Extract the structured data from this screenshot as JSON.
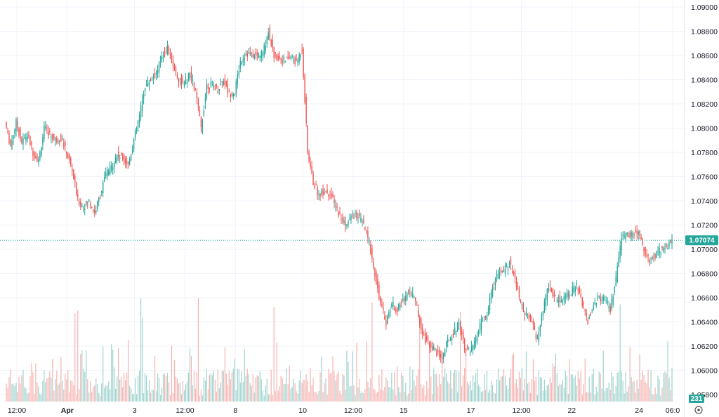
{
  "chart_data": {
    "type": "candlestick",
    "y_axis": {
      "ylim": [
        1.0585,
        1.0905
      ],
      "ticks": [
        "1.09000",
        "1.08800",
        "1.08600",
        "1.08400",
        "1.08200",
        "1.08000",
        "1.07800",
        "1.07600",
        "1.07400",
        "1.07200",
        "1.07000",
        "1.06800",
        "1.06600",
        "1.06400",
        "1.06200",
        "1.06000",
        "1.05800"
      ],
      "tick_values": [
        1.09,
        1.088,
        1.086,
        1.084,
        1.082,
        1.08,
        1.078,
        1.076,
        1.074,
        1.072,
        1.07,
        1.068,
        1.066,
        1.064,
        1.062,
        1.06,
        1.058
      ]
    },
    "x_axis": {
      "ticks": [
        {
          "label": "12:00",
          "bar": 2,
          "bold": false
        },
        {
          "label": "Apr",
          "bar": 11,
          "bold": true
        },
        {
          "label": "3",
          "bar": 23,
          "bold": false
        },
        {
          "label": "12:00",
          "bar": 32,
          "bold": false
        },
        {
          "label": "8",
          "bar": 41,
          "bold": false
        },
        {
          "label": "10",
          "bar": 53,
          "bold": false
        },
        {
          "label": "12:00",
          "bar": 62,
          "bold": false
        },
        {
          "label": "15",
          "bar": 71,
          "bold": false
        },
        {
          "label": "17",
          "bar": 83,
          "bold": false
        },
        {
          "label": "12:00",
          "bar": 92,
          "bold": false
        },
        {
          "label": "22",
          "bar": 101,
          "bold": false
        },
        {
          "label": "24",
          "bar": 113,
          "bold": false
        },
        {
          "label": "06:0",
          "bar": 119,
          "bold": false
        }
      ]
    },
    "close_path": [
      1.0805,
      1.0785,
      1.0805,
      1.0788,
      1.0795,
      1.078,
      1.0773,
      1.08,
      1.0795,
      1.079,
      1.0792,
      1.078,
      1.0765,
      1.074,
      1.0735,
      1.074,
      1.073,
      1.0745,
      1.0762,
      1.0768,
      1.0778,
      1.0775,
      1.077,
      1.079,
      1.081,
      1.0835,
      1.084,
      1.0845,
      1.086,
      1.0866,
      1.0852,
      1.084,
      1.0836,
      1.0845,
      1.083,
      1.08,
      1.0835,
      1.0836,
      1.0832,
      1.084,
      1.0828,
      1.083,
      1.0855,
      1.0862,
      1.086,
      1.086,
      1.0862,
      1.088,
      1.086,
      1.0858,
      1.0856,
      1.0859,
      1.0854,
      1.0866,
      1.078,
      1.0755,
      1.0745,
      1.0748,
      1.0746,
      1.0735,
      1.0725,
      1.072,
      1.0728,
      1.0727,
      1.072,
      1.0705,
      1.068,
      1.0655,
      1.064,
      1.0655,
      1.065,
      1.0658,
      1.0665,
      1.0662,
      1.064,
      1.0625,
      1.062,
      1.0615,
      1.061,
      1.0625,
      1.063,
      1.064,
      1.062,
      1.0615,
      1.0625,
      1.064,
      1.0645,
      1.067,
      1.068,
      1.0682,
      1.069,
      1.0675,
      1.0655,
      1.0645,
      1.064,
      1.0625,
      1.065,
      1.067,
      1.066,
      1.0658,
      1.0662,
      1.0665,
      1.067,
      1.0655,
      1.064,
      1.0655,
      1.066,
      1.0658,
      1.065,
      1.0675,
      1.071,
      1.0712,
      1.0712,
      1.0715,
      1.07,
      1.069,
      1.0695,
      1.07,
      1.0702,
      1.07074
    ],
    "last_price": "1.07074",
    "volume_badge": "231",
    "colors": {
      "up": "#26a69a",
      "down": "#ef5350",
      "up_volume": "#9fd3cd",
      "down_volume": "#f5b3b1",
      "price_line": "#26a69a",
      "grid": "#f0f3fa",
      "text": "#131722"
    }
  }
}
